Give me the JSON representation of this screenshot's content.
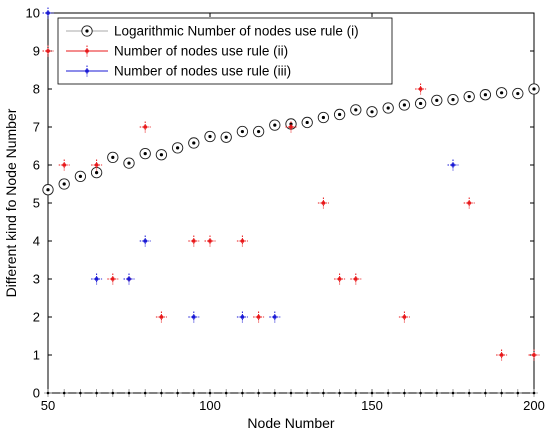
{
  "chart_data": {
    "type": "scatter",
    "title": "",
    "xlabel": "Node Number",
    "ylabel": "Different kind fo Node Number",
    "xlim": [
      50,
      200
    ],
    "ylim": [
      0,
      10
    ],
    "xticks": [
      "50",
      "100",
      "150",
      "200"
    ],
    "yticks": [
      "0",
      "1",
      "2",
      "3",
      "4",
      "5",
      "6",
      "7",
      "8",
      "9",
      "10"
    ],
    "grid": false,
    "legend_position": "top-left",
    "series": [
      {
        "name": "Logarithmic Number of nodes use rule (i)",
        "color": "#000000",
        "marker": "circle-dot",
        "x": [
          50,
          55,
          60,
          65,
          70,
          75,
          80,
          85,
          90,
          95,
          100,
          105,
          110,
          115,
          120,
          125,
          130,
          135,
          140,
          145,
          150,
          155,
          160,
          165,
          170,
          175,
          180,
          185,
          190,
          195,
          200
        ],
        "y": [
          5.35,
          5.5,
          5.7,
          5.8,
          6.2,
          6.05,
          6.3,
          6.27,
          6.45,
          6.58,
          6.75,
          6.73,
          6.88,
          6.88,
          7.05,
          7.08,
          7.12,
          7.25,
          7.33,
          7.45,
          7.4,
          7.5,
          7.58,
          7.62,
          7.7,
          7.72,
          7.8,
          7.85,
          7.9,
          7.88,
          8.0
        ]
      },
      {
        "name": "Number of nodes use rule (ii)",
        "color": "#e8191b",
        "marker": "plus-dot",
        "x": [
          50,
          55,
          65,
          70,
          75,
          80,
          85,
          95,
          100,
          110,
          115,
          125,
          135,
          140,
          145,
          160,
          165,
          180,
          190,
          200
        ],
        "y": [
          9,
          6,
          6,
          3,
          3,
          7,
          2,
          4,
          4,
          4,
          2,
          7,
          5,
          3,
          3,
          2,
          8,
          5,
          1,
          1
        ]
      },
      {
        "name": "Number of nodes use rule (iii)",
        "color": "#1a1ad6",
        "marker": "plus-dot",
        "x": [
          50,
          65,
          75,
          80,
          95,
          110,
          120,
          175
        ],
        "y": [
          10,
          3,
          3,
          4,
          2,
          2,
          2,
          6
        ]
      },
      {
        "name": "",
        "color": "#000000",
        "marker": "point",
        "x": [
          50,
          55,
          60,
          65,
          70,
          75,
          80,
          85,
          90,
          95,
          100,
          105,
          110,
          115,
          120,
          125,
          130,
          135,
          140,
          145,
          150,
          155,
          160,
          165,
          170,
          175,
          180,
          185,
          190,
          195,
          200
        ],
        "y": [
          0,
          0,
          0,
          0,
          0,
          0,
          0,
          0,
          0,
          0,
          0,
          0,
          0,
          0,
          0,
          0,
          0,
          0,
          0,
          0,
          0,
          0,
          0,
          0,
          0,
          0,
          0,
          0,
          0,
          0,
          0
        ]
      }
    ]
  }
}
